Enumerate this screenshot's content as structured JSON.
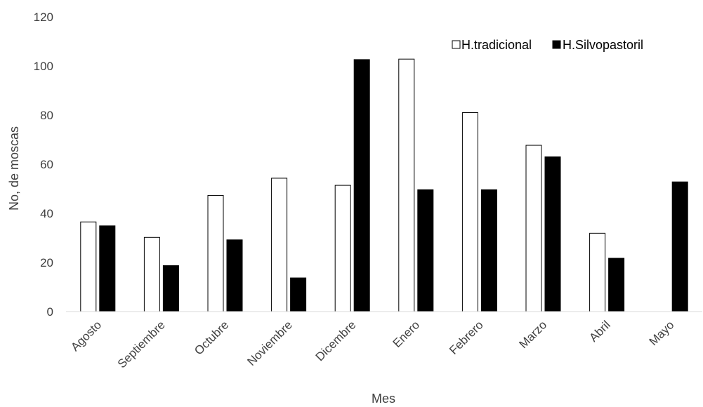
{
  "chart_data": {
    "type": "bar",
    "xlabel": "Mes",
    "ylabel": "No, de moscas",
    "ylim": [
      0,
      120
    ],
    "yticks": [
      0,
      20,
      40,
      60,
      80,
      100,
      120
    ],
    "grid": false,
    "legend_position": "top-right",
    "categories": [
      "Agosto",
      "Septiembre",
      "Octubre",
      "Noviembre",
      "Dicembre",
      "Enero",
      "Febrero",
      "Marzo",
      "Abril",
      "Mayo"
    ],
    "series": [
      {
        "name": "H.tradicional",
        "fill": "#ffffff",
        "stroke": "#000000",
        "values": [
          36.5,
          30.2,
          47.3,
          54.3,
          51.4,
          102.8,
          81.0,
          67.7,
          31.9,
          0
        ]
      },
      {
        "name": "H.Silvopastoril",
        "fill": "#000000",
        "stroke": "#000000",
        "values": [
          34.9,
          18.7,
          29.2,
          13.7,
          102.6,
          49.6,
          49.6,
          63.0,
          21.7,
          52.8
        ]
      }
    ]
  }
}
